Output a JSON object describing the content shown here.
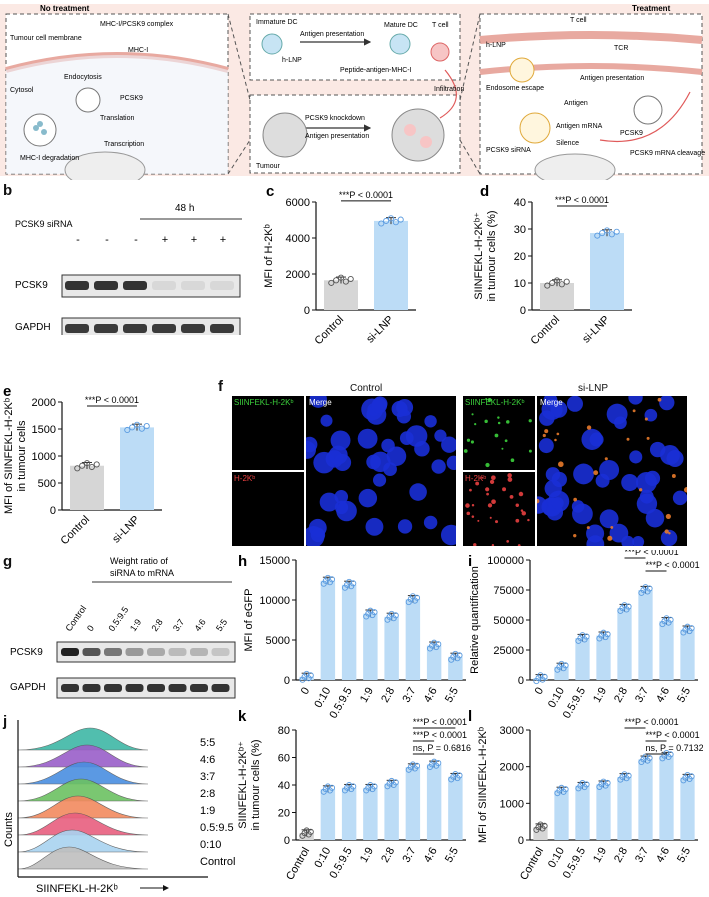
{
  "panel_a": {
    "letter": "a",
    "left_header": "No treatment",
    "right_header": "Treatment",
    "left_labels": {
      "membrane": "Tumour cell membrane",
      "complex": "MHC-I/PCSK9 complex",
      "mhc": "MHC-I",
      "endocytosis": "Endocytosis",
      "cytosol": "Cytosol",
      "pcsk9": "PCSK9",
      "translation": "Translation",
      "degradation": "MHC-I degradation",
      "transcription": "Transcription"
    },
    "center_labels": {
      "immature_dc": "Immature DC",
      "mature_dc": "Mature DC",
      "t_cell": "T cell",
      "antigen_presentation": "Antigen presentation",
      "hlnp": "h-LNP",
      "peptide": "Peptide-antigen-MHC-I",
      "infiltration": "Infiltration",
      "knockdown": "PCSK9 knockdown",
      "antigen_presentation2": "Antigen presentation",
      "tumour": "Tumour"
    },
    "right_labels": {
      "tcell": "T cell",
      "hlnp": "h-LNP",
      "tcr": "TCR",
      "antigen_presentation": "Antigen presentation",
      "endosome_escape": "Endosome escape",
      "antigen": "Antigen",
      "antigen_mrna": "Antigen mRNA",
      "pcsk9": "PCSK9",
      "pcsk9_sirna": "PCSK9 siRNA",
      "silence": "Silence",
      "cleavage": "PCSK9 mRNA cleavage"
    }
  },
  "panel_b": {
    "letter": "b",
    "time": "48 h",
    "sirna_label": "PCSK9 siRNA",
    "signs": [
      "-",
      "-",
      "-",
      "+",
      "+",
      "+"
    ],
    "rows": [
      "PCSK9",
      "GAPDH"
    ]
  },
  "panel_f": {
    "letter": "f",
    "group_control": "Control",
    "group_si": "si-LNP",
    "green_label": "SIINFEKL-H-2Kᵇ",
    "red_label": "H-2Kᵇ",
    "merge_label": "Merge"
  },
  "panel_g": {
    "letter": "g",
    "title": "Weight ratio of siRNA to mRNA",
    "lanes": [
      "Control",
      "0",
      "0.5:9.5",
      "1:9",
      "2:8",
      "3:7",
      "4:6",
      "5:5"
    ],
    "rows": [
      "PCSK9",
      "GAPDH"
    ]
  },
  "panel_j": {
    "letter": "j",
    "ylabel": "Counts",
    "xlabel": "SIINFEKL-H-2Kᵇ",
    "labels": [
      "5:5",
      "4:6",
      "3:7",
      "2:8",
      "1:9",
      "0.5:9.5",
      "0:10",
      "Control"
    ],
    "colors": [
      "#3fb8a6",
      "#9a5fc9",
      "#4a8fe0",
      "#6cc262",
      "#f28a5f",
      "#e85f7f",
      "#a9d3f0",
      "#bfbfbf"
    ]
  },
  "chart_data": [
    {
      "id": "c",
      "letter": "c",
      "type": "bar",
      "categories": [
        "Control",
        "si-LNP"
      ],
      "values": [
        1650,
        4950
      ],
      "ylabel": "MFI of H-2Kᵇ",
      "ylim": [
        0,
        6000
      ],
      "yticks": [
        "0",
        "2000",
        "4000",
        "6000"
      ],
      "annotation": "***P < 0.0001"
    },
    {
      "id": "d",
      "letter": "d",
      "type": "bar",
      "categories": [
        "Control",
        "si-LNP"
      ],
      "values": [
        10,
        28.5
      ],
      "ylabel": "SIINFEKL-H-2Kᵇ⁺ in tumour cells (%)",
      "ylim": [
        0,
        40
      ],
      "yticks": [
        "0",
        "10",
        "20",
        "30",
        "40"
      ],
      "annotation": "***P < 0.0001"
    },
    {
      "id": "e",
      "letter": "e",
      "type": "bar",
      "categories": [
        "Control",
        "si-LNP"
      ],
      "values": [
        820,
        1530
      ],
      "ylabel": "MFI of SIINFEKL-H-2Kᵇ in tumour cells",
      "ylim": [
        0,
        2000
      ],
      "yticks": [
        "0",
        "500",
        "1000",
        "1500",
        "2000"
      ],
      "annotation": "***P < 0.0001"
    },
    {
      "id": "h",
      "letter": "h",
      "type": "bar",
      "categories": [
        "0",
        "0:10",
        "0.5:9.5",
        "1:9",
        "2:8",
        "3:7",
        "4:6",
        "5:5"
      ],
      "values": [
        400,
        12400,
        11900,
        8300,
        7900,
        10100,
        4300,
        2900
      ],
      "ylabel": "MFI of eGFP",
      "ylim": [
        0,
        15000
      ],
      "yticks": [
        "0",
        "5000",
        "10000",
        "15000"
      ]
    },
    {
      "id": "i",
      "letter": "i",
      "type": "bar",
      "categories": [
        "0",
        "0:10",
        "0.5:9.5",
        "1:9",
        "2:8",
        "3:7",
        "4:6",
        "5:5"
      ],
      "values": [
        1500,
        11000,
        35000,
        37000,
        60000,
        75000,
        49000,
        42000
      ],
      "ylabel": "Relative quantification",
      "ylim": [
        0,
        100000
      ],
      "yticks": [
        "0",
        "25000",
        "50000",
        "75000",
        "100000"
      ],
      "annotations": [
        "***P < 0.0001",
        "***P < 0.0001"
      ]
    },
    {
      "id": "k",
      "letter": "k",
      "type": "bar",
      "categories": [
        "Control",
        "0:10",
        "0.5:9.5",
        "1:9",
        "2:8",
        "3:7",
        "4:6",
        "5:5"
      ],
      "values": [
        5,
        37,
        38,
        38,
        41,
        53,
        55,
        46
      ],
      "ylabel": "SIINFEKL-H-2Kᵇ⁺ in tumour cells (%)",
      "ylim": [
        0,
        80
      ],
      "yticks": [
        "0",
        "20",
        "40",
        "60",
        "80"
      ],
      "annotations": [
        "***P < 0.0001",
        "***P < 0.0001",
        "ns, P = 0.6816"
      ]
    },
    {
      "id": "l",
      "letter": "l",
      "type": "bar",
      "categories": [
        "Control",
        "0:10",
        "0.5:9.5",
        "1:9",
        "2:8",
        "3:7",
        "4:6",
        "5:5"
      ],
      "values": [
        350,
        1350,
        1480,
        1520,
        1720,
        2200,
        2300,
        1700
      ],
      "ylabel": "MFI of SIINFEKL-H-2Kᵇ",
      "ylim": [
        0,
        3000
      ],
      "yticks": [
        "0",
        "1000",
        "2000",
        "3000"
      ],
      "annotations": [
        "***P < 0.0001",
        "***P < 0.0001",
        "ns, P = 0.7132"
      ]
    }
  ]
}
